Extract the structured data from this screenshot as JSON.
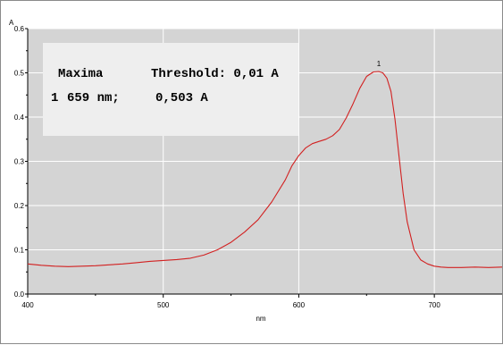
{
  "chart_data": {
    "type": "line",
    "title": "",
    "xlabel": "nm",
    "ylabel": "A",
    "xlim": [
      400,
      750
    ],
    "ylim": [
      0.0,
      0.6
    ],
    "xticks": [
      "400",
      "500",
      "600",
      "700"
    ],
    "yticks": [
      "0.0",
      "0.1",
      "0.2",
      "0.3",
      "0.4",
      "0.5",
      "0.6"
    ],
    "grid": true,
    "series": [
      {
        "color": "#d22020",
        "x": [
          400,
          410,
          420,
          430,
          440,
          450,
          460,
          470,
          480,
          490,
          500,
          510,
          520,
          530,
          540,
          550,
          560,
          570,
          580,
          590,
          595,
          600,
          605,
          610,
          615,
          620,
          625,
          630,
          635,
          640,
          645,
          650,
          655,
          659,
          662,
          665,
          668,
          671,
          674,
          677,
          680,
          685,
          690,
          695,
          700,
          705,
          710,
          720,
          730,
          740,
          750
        ],
        "y": [
          0.068,
          0.065,
          0.063,
          0.062,
          0.063,
          0.064,
          0.066,
          0.068,
          0.071,
          0.074,
          0.076,
          0.078,
          0.081,
          0.088,
          0.1,
          0.117,
          0.14,
          0.168,
          0.208,
          0.258,
          0.29,
          0.313,
          0.33,
          0.34,
          0.345,
          0.35,
          0.358,
          0.372,
          0.398,
          0.43,
          0.465,
          0.492,
          0.502,
          0.503,
          0.5,
          0.488,
          0.458,
          0.395,
          0.31,
          0.228,
          0.163,
          0.1,
          0.077,
          0.068,
          0.063,
          0.061,
          0.06,
          0.06,
          0.061,
          0.06,
          0.061
        ]
      }
    ],
    "peaks": [
      {
        "label": "1",
        "x": 659,
        "y": 0.503
      }
    ]
  },
  "info_box": {
    "maxima_label": "Maxima",
    "threshold_label": "Threshold: 0,01 A",
    "row_index": "1",
    "row_wavelength": "659 nm;",
    "row_absorbance": "0,503 A"
  }
}
